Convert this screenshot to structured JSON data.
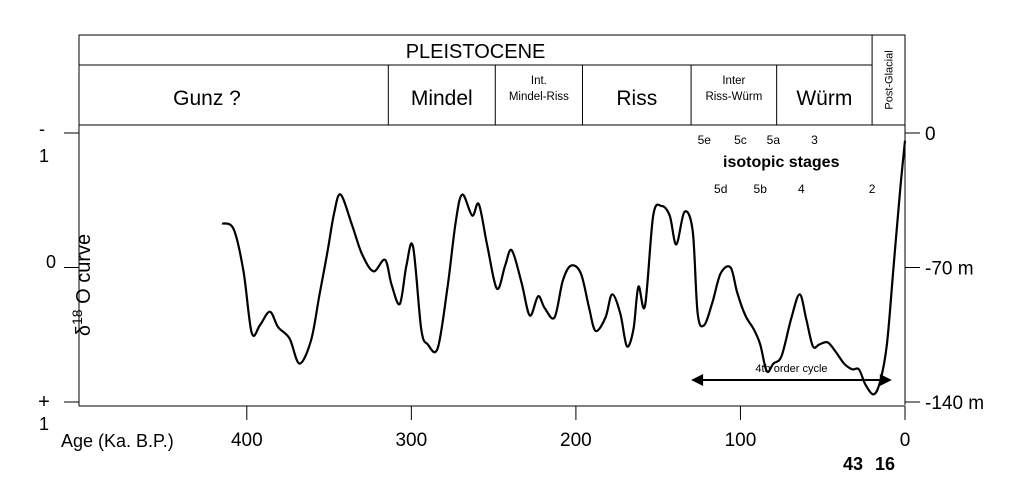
{
  "chart_data": {
    "type": "line",
    "xlabel": "Age (Ka. B.P.)",
    "ylabel_main": "δ",
    "ylabel_sup": "18",
    "ylabel_rest": "O curve",
    "x_ticks": [
      400,
      300,
      200,
      100,
      0
    ],
    "xlim": [
      420,
      0
    ],
    "y_ticks_left": [
      {
        "text": "-",
        "level": 0
      },
      {
        "text": "1",
        "level": 0
      },
      {
        "text": "0",
        "level": 70
      },
      {
        "text": "+",
        "level": 140
      },
      {
        "text": "1",
        "level": 140
      }
    ],
    "y_ticks_right": [
      {
        "text": "0",
        "level": 0
      },
      {
        "text": "-70 m",
        "level": 70
      },
      {
        "text": "-140 m",
        "level": 140
      }
    ],
    "ylim": [
      0,
      140
    ],
    "bottom_labels": [
      "43",
      "16"
    ],
    "bottom_label_ages": [
      43,
      16
    ],
    "series": [
      {
        "points": [
          [
            415,
            47
          ],
          [
            408,
            50
          ],
          [
            402,
            72
          ],
          [
            397,
            104
          ],
          [
            392,
            100
          ],
          [
            386,
            93
          ],
          [
            381,
            101
          ],
          [
            374,
            107
          ],
          [
            368,
            120
          ],
          [
            361,
            108
          ],
          [
            356,
            85
          ],
          [
            351,
            62
          ],
          [
            347,
            42
          ],
          [
            343,
            32
          ],
          [
            336,
            48
          ],
          [
            330,
            63
          ],
          [
            323,
            72
          ],
          [
            316,
            66
          ],
          [
            312,
            79
          ],
          [
            307,
            89
          ],
          [
            303,
            69
          ],
          [
            299,
            59
          ],
          [
            294,
            102
          ],
          [
            290,
            110
          ],
          [
            284,
            112
          ],
          [
            278,
            80
          ],
          [
            273,
            46
          ],
          [
            269,
            32
          ],
          [
            263,
            43
          ],
          [
            259,
            37
          ],
          [
            254,
            58
          ],
          [
            248,
            81
          ],
          [
            243,
            69
          ],
          [
            239,
            61
          ],
          [
            233,
            78
          ],
          [
            228,
            95
          ],
          [
            223,
            85
          ],
          [
            219,
            91
          ],
          [
            213,
            96
          ],
          [
            208,
            77
          ],
          [
            203,
            69
          ],
          [
            197,
            73
          ],
          [
            192,
            91
          ],
          [
            188,
            103
          ],
          [
            182,
            96
          ],
          [
            178,
            84
          ],
          [
            173,
            94
          ],
          [
            169,
            111
          ],
          [
            165,
            102
          ],
          [
            162,
            80
          ],
          [
            158,
            90
          ],
          [
            153,
            43
          ],
          [
            148,
            38
          ],
          [
            143,
            43
          ],
          [
            139,
            58
          ],
          [
            134,
            41
          ],
          [
            129,
            51
          ],
          [
            126,
            94
          ],
          [
            122,
            100
          ],
          [
            117,
            88
          ],
          [
            112,
            73
          ],
          [
            106,
            70
          ],
          [
            102,
            83
          ],
          [
            97,
            95
          ],
          [
            92,
            102
          ],
          [
            88,
            110
          ],
          [
            84,
            124
          ],
          [
            80,
            120
          ],
          [
            75,
            116
          ],
          [
            69,
            96
          ],
          [
            64,
            84
          ],
          [
            60,
            97
          ],
          [
            56,
            111
          ],
          [
            52,
            110
          ],
          [
            47,
            109
          ],
          [
            42,
            114
          ],
          [
            37,
            120
          ],
          [
            32,
            123
          ],
          [
            28,
            123
          ],
          [
            24,
            131
          ],
          [
            19,
            136
          ],
          [
            15,
            129
          ],
          [
            11,
            110
          ],
          [
            7,
            70
          ],
          [
            3,
            30
          ],
          [
            0,
            4
          ]
        ]
      }
    ],
    "isotopic_stages": {
      "title": "isotopic stages",
      "labels": [
        {
          "text": "5e",
          "age": 122,
          "row": "top"
        },
        {
          "text": "5c",
          "age": 100,
          "row": "top"
        },
        {
          "text": "5a",
          "age": 80,
          "row": "top"
        },
        {
          "text": "3",
          "age": 55,
          "row": "top"
        },
        {
          "text": "5d",
          "age": 112,
          "row": "bottom"
        },
        {
          "text": "5b",
          "age": 88,
          "row": "bottom"
        },
        {
          "text": "4",
          "age": 63,
          "row": "bottom"
        },
        {
          "text": "2",
          "age": 20,
          "row": "bottom"
        }
      ]
    },
    "cycle_annotation": {
      "text": "4th order cycle",
      "from_age": 130,
      "to_age": 8
    },
    "periods": {
      "era": "PLEISTOCENE",
      "stages": [
        {
          "name": "Gunz ?",
          "from": 420,
          "to": 314
        },
        {
          "name": "Mindel",
          "from": 314,
          "to": 249
        },
        {
          "name": "Int. Mindel-Riss",
          "from": 249,
          "to": 196
        },
        {
          "name": "Riss",
          "from": 196,
          "to": 130
        },
        {
          "name": "Inter Riss-Würm",
          "from": 130,
          "to": 78
        },
        {
          "name": "Würm",
          "from": 78,
          "to": 20
        },
        {
          "name": "Post-Glacial",
          "from": 20,
          "to": 0
        }
      ]
    }
  }
}
